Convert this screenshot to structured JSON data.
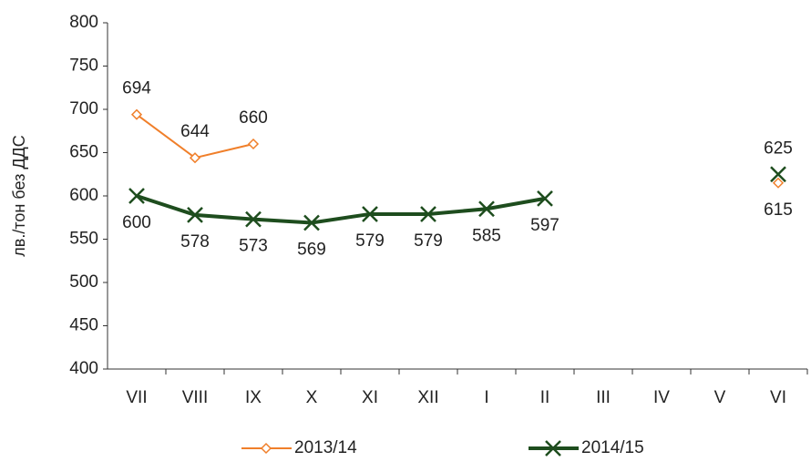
{
  "chart_data": {
    "type": "line",
    "y_label": "лв./тон без ДДС",
    "categories": [
      "VII",
      "VIII",
      "IX",
      "X",
      "XI",
      "XII",
      "I",
      "II",
      "III",
      "IV",
      "V",
      "VI"
    ],
    "series": [
      {
        "name": "2013/14",
        "color": "#f07f2a",
        "marker": "diamond",
        "values": [
          694,
          644,
          660,
          null,
          null,
          null,
          null,
          null,
          null,
          null,
          null,
          615
        ]
      },
      {
        "name": "2014/15",
        "color": "#1e4d1e",
        "marker": "x",
        "values": [
          600,
          578,
          573,
          569,
          579,
          579,
          585,
          597,
          null,
          null,
          null,
          625
        ]
      }
    ],
    "ylim": [
      400,
      800
    ],
    "yticks": [
      400,
      450,
      500,
      550,
      600,
      650,
      700,
      750,
      800
    ],
    "legend": "bottom"
  }
}
